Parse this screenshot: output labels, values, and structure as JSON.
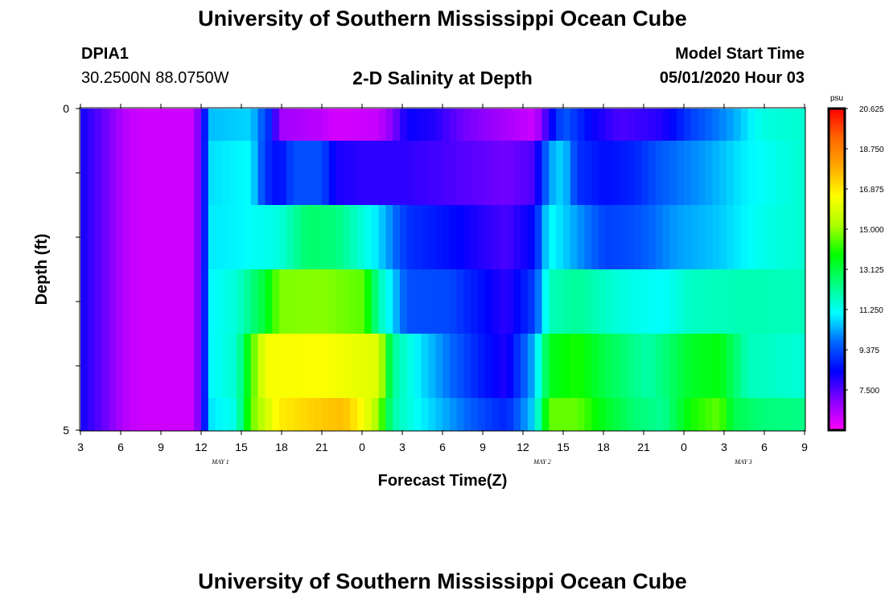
{
  "page": {
    "title": "University of Southern Mississippi Ocean Cube",
    "footer_title": "University of Southern Mississippi Ocean Cube",
    "station": "DPIA1",
    "coords": "30.2500N 88.0750W",
    "subtitle": "2-D Salinity at Depth",
    "start_label": "Model Start Time",
    "start_value": "05/01/2020 Hour 03"
  },
  "colors": {
    "scale": [
      "#ff00ff",
      "#8800ff",
      "#0000ff",
      "#0066ff",
      "#00ffff",
      "#00ff80",
      "#00ff00",
      "#aaff00",
      "#ffff00",
      "#ffaa00",
      "#ff6600",
      "#ff0000"
    ]
  },
  "chart_data": {
    "type": "heatmap",
    "title": "2-D Salinity at Depth",
    "xlabel": "Forecast Time(Z)",
    "ylabel": "Depth (ft)",
    "x_tick_labels": [
      "3",
      "6",
      "9",
      "12",
      "15",
      "18",
      "21",
      "0",
      "3",
      "6",
      "9",
      "12",
      "15",
      "18",
      "21",
      "0",
      "3",
      "6",
      "9"
    ],
    "date_labels": [
      {
        "text": "MAY 1",
        "tick_index": 3
      },
      {
        "text": "MAY 2",
        "tick_index": 11
      },
      {
        "text": "MAY 3",
        "tick_index": 16
      }
    ],
    "y_tick_labels": [
      "0",
      "5"
    ],
    "ylim": [
      0,
      5
    ],
    "y_minor_ticks": 4,
    "colorbar": {
      "unit": "psu",
      "min": 5.625,
      "max": 20.625,
      "labels": [
        "20.625",
        "18.750",
        "16.875",
        "15.000",
        "13.125",
        "11.250",
        "9.375",
        "7.500"
      ]
    },
    "x_hours": [
      3,
      54
    ],
    "depth_rows": 5,
    "segments": [
      [
        [
          3,
          8.2
        ],
        [
          4.5,
          7.4
        ],
        [
          6,
          6.5
        ],
        [
          7,
          6.2
        ],
        [
          11,
          6.2
        ],
        [
          11.7,
          8.3
        ],
        [
          12,
          10.5
        ],
        [
          15,
          10.7
        ],
        [
          16.5,
          8.6
        ],
        [
          17,
          6.7
        ],
        [
          20,
          6.4
        ],
        [
          21,
          6.1
        ],
        [
          24,
          6.3
        ],
        [
          25,
          7.0
        ],
        [
          26,
          8.3
        ],
        [
          28,
          8.0
        ],
        [
          30,
          7.2
        ],
        [
          33,
          6.6
        ],
        [
          35,
          6.2
        ],
        [
          36,
          8.0
        ],
        [
          37,
          9.6
        ],
        [
          39,
          8.3
        ],
        [
          41,
          7.6
        ],
        [
          44,
          8.0
        ],
        [
          46,
          9.2
        ],
        [
          49,
          10.3
        ],
        [
          51,
          11.4
        ],
        [
          54,
          11.6
        ]
      ],
      [
        [
          3,
          8.2
        ],
        [
          4.5,
          7.4
        ],
        [
          6,
          6.5
        ],
        [
          7,
          6.2
        ],
        [
          11,
          6.2
        ],
        [
          11.7,
          8.3
        ],
        [
          12,
          10.8
        ],
        [
          15,
          11.1
        ],
        [
          16,
          9.0
        ],
        [
          17,
          8.4
        ],
        [
          18,
          9.4
        ],
        [
          20,
          9.4
        ],
        [
          21,
          8.1
        ],
        [
          23,
          7.9
        ],
        [
          26,
          7.9
        ],
        [
          29,
          7.6
        ],
        [
          33,
          7.2
        ],
        [
          35,
          7.6
        ],
        [
          36,
          10.2
        ],
        [
          37,
          10.8
        ],
        [
          38,
          9.0
        ],
        [
          40,
          8.5
        ],
        [
          42,
          8.8
        ],
        [
          44,
          9.6
        ],
        [
          47,
          10.2
        ],
        [
          50,
          11.0
        ],
        [
          54,
          11.6
        ]
      ],
      [
        [
          3,
          8.2
        ],
        [
          4.5,
          7.4
        ],
        [
          6,
          6.5
        ],
        [
          7,
          6.2
        ],
        [
          11,
          6.2
        ],
        [
          11.7,
          8.3
        ],
        [
          12,
          10.9
        ],
        [
          14,
          11.0
        ],
        [
          17,
          11.4
        ],
        [
          19,
          12.7
        ],
        [
          21,
          12.5
        ],
        [
          24,
          10.8
        ],
        [
          26,
          9.0
        ],
        [
          29,
          8.5
        ],
        [
          33,
          7.6
        ],
        [
          35,
          8.5
        ],
        [
          36,
          11.2
        ],
        [
          38,
          10.2
        ],
        [
          40,
          9.2
        ],
        [
          42,
          9.4
        ],
        [
          45,
          10.2
        ],
        [
          48,
          10.6
        ],
        [
          51,
          11.3
        ],
        [
          54,
          11.6
        ]
      ],
      [
        [
          3,
          8.2
        ],
        [
          4.5,
          7.4
        ],
        [
          6,
          6.5
        ],
        [
          7,
          6.2
        ],
        [
          11,
          6.2
        ],
        [
          11.7,
          8.3
        ],
        [
          12,
          11.0
        ],
        [
          14,
          11.5
        ],
        [
          16,
          13.3
        ],
        [
          17,
          14.8
        ],
        [
          20,
          14.9
        ],
        [
          23,
          14.5
        ],
        [
          24,
          12.0
        ],
        [
          26,
          9.4
        ],
        [
          29,
          9.3
        ],
        [
          31,
          8.6
        ],
        [
          33,
          7.9
        ],
        [
          35,
          9.2
        ],
        [
          36,
          11.8
        ],
        [
          38,
          12.2
        ],
        [
          41,
          11.4
        ],
        [
          44,
          11.1
        ],
        [
          46,
          11.7
        ],
        [
          50,
          11.9
        ],
        [
          54,
          11.8
        ]
      ],
      [
        [
          3,
          8.2
        ],
        [
          4.5,
          7.4
        ],
        [
          6,
          6.5
        ],
        [
          7,
          6.2
        ],
        [
          11,
          6.2
        ],
        [
          11.7,
          8.3
        ],
        [
          12,
          11.0
        ],
        [
          14,
          11.6
        ],
        [
          15,
          14.2
        ],
        [
          16,
          16.4
        ],
        [
          20,
          16.5
        ],
        [
          24,
          16.0
        ],
        [
          25,
          12.2
        ],
        [
          27,
          10.8
        ],
        [
          29,
          9.8
        ],
        [
          31,
          8.8
        ],
        [
          33,
          8.0
        ],
        [
          35,
          10.5
        ],
        [
          36,
          13.5
        ],
        [
          38,
          14.0
        ],
        [
          40,
          13.0
        ],
        [
          43,
          12.0
        ],
        [
          46,
          13.4
        ],
        [
          48,
          13.7
        ],
        [
          50,
          11.8
        ],
        [
          54,
          11.5
        ]
      ],
      [
        [
          3,
          8.2
        ],
        [
          4.5,
          7.4
        ],
        [
          6,
          6.5
        ],
        [
          7,
          6.2
        ],
        [
          11,
          6.2
        ],
        [
          11.7,
          8.3
        ],
        [
          12,
          10.8
        ],
        [
          14,
          11.4
        ],
        [
          15,
          14.6
        ],
        [
          17,
          16.8
        ],
        [
          20,
          17.4
        ],
        [
          21.5,
          17.6
        ],
        [
          23,
          16.4
        ],
        [
          24,
          15.0
        ],
        [
          25,
          12.0
        ],
        [
          27,
          11.0
        ],
        [
          29,
          10.2
        ],
        [
          31,
          9.4
        ],
        [
          33,
          8.8
        ],
        [
          35,
          10.8
        ],
        [
          36,
          14.6
        ],
        [
          38,
          14.6
        ],
        [
          40,
          13.4
        ],
        [
          42,
          12.6
        ],
        [
          44,
          12.2
        ],
        [
          46,
          13.9
        ],
        [
          48,
          14.6
        ],
        [
          49,
          13.0
        ],
        [
          51,
          12.5
        ],
        [
          54,
          12.4
        ]
      ]
    ]
  }
}
